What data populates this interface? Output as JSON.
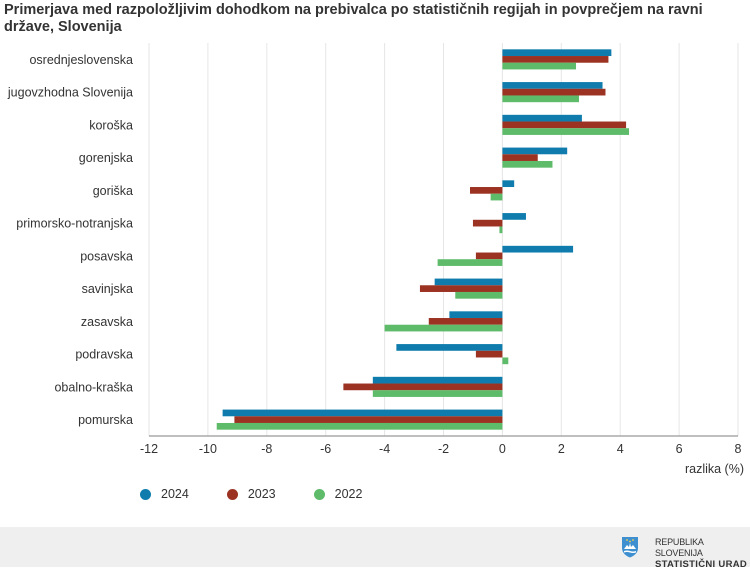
{
  "chart_data": {
    "type": "bar",
    "orientation": "horizontal",
    "title": "Primerjava med razpoložljivim dohodkom na prebivalca po statističnih regijah in povprečjem na ravni države, Slovenija",
    "xlabel": "razlika (%)",
    "ylabel": "",
    "xlim": [
      -12,
      8
    ],
    "xticks": [
      -12,
      -10,
      -8,
      -6,
      -4,
      -2,
      0,
      2,
      4,
      6,
      8
    ],
    "grid": true,
    "legend_position": "bottom-left",
    "categories": [
      "osrednjeslovenska",
      "jugovzhodna Slovenija",
      "koroška",
      "gorenjska",
      "goriška",
      "primorsko-notranjska",
      "posavska",
      "savinjska",
      "zasavska",
      "podravska",
      "obalno-kraška",
      "pomurska"
    ],
    "series": [
      {
        "name": "2024",
        "color": "#0f7cad",
        "values": [
          3.7,
          3.4,
          2.7,
          2.2,
          0.4,
          0.8,
          2.4,
          -2.3,
          -1.8,
          -3.6,
          -4.4,
          -9.5
        ]
      },
      {
        "name": "2023",
        "color": "#9b3222",
        "values": [
          3.6,
          3.5,
          4.2,
          1.2,
          -1.1,
          -1.0,
          -0.9,
          -2.8,
          -2.5,
          -0.9,
          -5.4,
          -9.1
        ]
      },
      {
        "name": "2022",
        "color": "#5dbb6a",
        "values": [
          2.5,
          2.6,
          4.3,
          1.7,
          -0.4,
          -0.1,
          -2.2,
          -1.6,
          -4.0,
          0.2,
          -4.4,
          -9.7
        ]
      }
    ]
  },
  "footer": {
    "org_line1": "REPUBLIKA SLOVENIJA",
    "org_line2": "STATISTIČNI URAD",
    "logo_icon": "coat-of-arms-icon"
  }
}
